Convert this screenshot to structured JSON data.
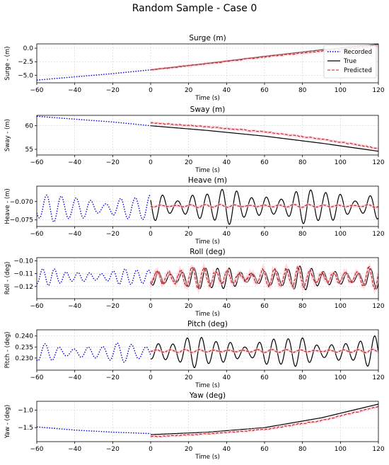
{
  "figure_title": "Random Sample - Case 0",
  "colors": {
    "recorded": "#0000cc",
    "true": "#000000",
    "predicted": "#b22222",
    "band": "#ffc0cb",
    "grid": "#d0d0d0"
  },
  "legend": {
    "location": "top-right (Surge panel)",
    "entries": [
      "Recorded",
      "True",
      "Predicted"
    ]
  },
  "chart_data": [
    {
      "type": "line",
      "title": "Surge (m)",
      "xlabel": "Time (s)",
      "ylabel": "Surge - (m)",
      "xlim": [
        -60,
        120
      ],
      "ylim": [
        -6.4,
        0.8
      ],
      "xticks": [
        -60,
        -40,
        -20,
        0,
        20,
        40,
        60,
        80,
        100,
        120
      ],
      "yticks": [
        0.0,
        -2.5,
        -5.0
      ],
      "ytick_labels": [
        "0.0",
        "−2.5",
        "−5.0"
      ],
      "grid": true,
      "series": [
        {
          "name": "Recorded",
          "style": "dotted",
          "x": [
            -60,
            -40,
            -20,
            0
          ],
          "y": [
            -5.9,
            -5.3,
            -4.7,
            -4.0
          ]
        },
        {
          "name": "True",
          "style": "solid",
          "x": [
            0,
            30,
            60,
            90,
            120
          ],
          "y": [
            -4.0,
            -2.8,
            -1.5,
            -0.3,
            0.7
          ]
        },
        {
          "name": "Predicted",
          "style": "dashed",
          "x": [
            0,
            30,
            60,
            90,
            100,
            110,
            120
          ],
          "y": [
            -4.0,
            -2.85,
            -1.6,
            -0.5,
            -0.2,
            0.1,
            0.4
          ]
        }
      ]
    },
    {
      "type": "line",
      "title": "Sway (m)",
      "xlabel": "Time (s)",
      "ylabel": "Sway - (m)",
      "xlim": [
        -60,
        120
      ],
      "ylim": [
        53.8,
        62.2
      ],
      "xticks": [
        -60,
        -40,
        -20,
        0,
        20,
        40,
        60,
        80,
        100,
        120
      ],
      "yticks": [
        60,
        55
      ],
      "grid": true,
      "series": [
        {
          "name": "Recorded",
          "style": "dotted",
          "x": [
            -60,
            -40,
            -20,
            0
          ],
          "y": [
            62.0,
            61.4,
            60.8,
            60.0
          ]
        },
        {
          "name": "True",
          "style": "solid",
          "x": [
            0,
            30,
            60,
            90,
            120
          ],
          "y": [
            60.0,
            59.0,
            57.8,
            56.3,
            54.6
          ]
        },
        {
          "name": "Predicted",
          "style": "dashed",
          "x": [
            0,
            30,
            60,
            90,
            120
          ],
          "y": [
            60.6,
            59.8,
            58.7,
            57.2,
            55.2
          ]
        }
      ]
    },
    {
      "type": "line",
      "title": "Heave (m)",
      "xlabel": "Time (s)",
      "ylabel": "Heave - (m)",
      "xlim": [
        -60,
        120
      ],
      "ylim": [
        -0.0768,
        -0.0658
      ],
      "xticks": [
        -60,
        -40,
        -20,
        0,
        20,
        40,
        60,
        80,
        100,
        120
      ],
      "yticks": [
        -0.07,
        -0.075
      ],
      "ytick_labels": [
        "−0.070",
        "−0.075"
      ],
      "grid": true,
      "series": [
        {
          "name": "Recorded",
          "style": "dotted",
          "mean": -0.0718,
          "amplitude": 0.0035,
          "period": 7.8,
          "x_range": [
            -60,
            0
          ]
        },
        {
          "name": "True",
          "style": "solid",
          "mean": -0.0713,
          "amplitude": 0.0045,
          "period": 7.8,
          "x_range": [
            0,
            120
          ]
        },
        {
          "name": "Predicted",
          "style": "dashed",
          "mean": -0.0712,
          "amplitude": 0.0004,
          "period": 7.8,
          "x_range": [
            0,
            120
          ]
        }
      ]
    },
    {
      "type": "line",
      "title": "Roll (deg)",
      "xlabel": "Time (s)",
      "ylabel": "Roll - (deg)",
      "xlim": [
        -60,
        120
      ],
      "ylim": [
        -0.1295,
        -0.0975
      ],
      "xticks": [
        -60,
        -40,
        -20,
        0,
        20,
        40,
        60,
        80,
        100,
        120
      ],
      "yticks": [
        -0.1,
        -0.11,
        -0.12
      ],
      "ytick_labels": [
        "−0.10",
        "−0.11",
        "−0.12"
      ],
      "grid": true,
      "series": [
        {
          "name": "Recorded",
          "style": "dotted",
          "mean": -0.1125,
          "amplitude": 0.006,
          "period": 6.2,
          "x_range": [
            -60,
            0
          ]
        },
        {
          "name": "True",
          "style": "solid",
          "mean": -0.1135,
          "amplitude": 0.0085,
          "period": 6.2,
          "x_range": [
            0,
            120
          ]
        },
        {
          "name": "Predicted",
          "style": "dashed",
          "mean": -0.113,
          "amplitude": 0.0075,
          "period": 6.2,
          "x_range": [
            0,
            120
          ]
        }
      ]
    },
    {
      "type": "line",
      "title": "Pitch (deg)",
      "xlabel": "Time (s)",
      "ylabel": "Pitch - (deg)",
      "xlim": [
        -60,
        120
      ],
      "ylim": [
        0.2245,
        0.2428
      ],
      "xticks": [
        -60,
        -40,
        -20,
        0,
        20,
        40,
        60,
        80,
        100,
        120
      ],
      "yticks": [
        0.24,
        0.235,
        0.23
      ],
      "ytick_labels": [
        "0.240",
        "0.235",
        "0.230"
      ],
      "grid": true,
      "series": [
        {
          "name": "Recorded",
          "style": "dotted",
          "mean": 0.2325,
          "amplitude": 0.004,
          "period": 7.6,
          "x_range": [
            -60,
            0
          ]
        },
        {
          "name": "True",
          "style": "solid",
          "mean": 0.2328,
          "amplitude": 0.0065,
          "period": 7.6,
          "x_range": [
            0,
            120
          ]
        },
        {
          "name": "Predicted",
          "style": "dashed",
          "mean": 0.2332,
          "amplitude": 0.0007,
          "period": 7.6,
          "x_range": [
            0,
            120
          ]
        }
      ]
    },
    {
      "type": "line",
      "title": "Yaw (deg)",
      "xlabel": "Time (s)",
      "ylabel": "Yaw - (deg)",
      "xlim": [
        -60,
        120
      ],
      "ylim": [
        -1.9,
        -0.75
      ],
      "xticks": [
        -60,
        -40,
        -20,
        0,
        20,
        40,
        60,
        80,
        100,
        120
      ],
      "yticks": [
        -1.0,
        -1.5
      ],
      "ytick_labels": [
        "−1.0",
        "−1.5"
      ],
      "grid": true,
      "series": [
        {
          "name": "Recorded",
          "style": "dotted",
          "x": [
            -60,
            -40,
            -20,
            0
          ],
          "y": [
            -1.48,
            -1.57,
            -1.63,
            -1.67
          ]
        },
        {
          "name": "True",
          "style": "solid",
          "x": [
            0,
            30,
            60,
            90,
            120
          ],
          "y": [
            -1.7,
            -1.63,
            -1.5,
            -1.22,
            -0.83
          ]
        },
        {
          "name": "Predicted",
          "style": "dashed",
          "x": [
            0,
            30,
            60,
            90,
            120
          ],
          "y": [
            -1.76,
            -1.68,
            -1.55,
            -1.3,
            -0.9
          ]
        }
      ]
    }
  ]
}
